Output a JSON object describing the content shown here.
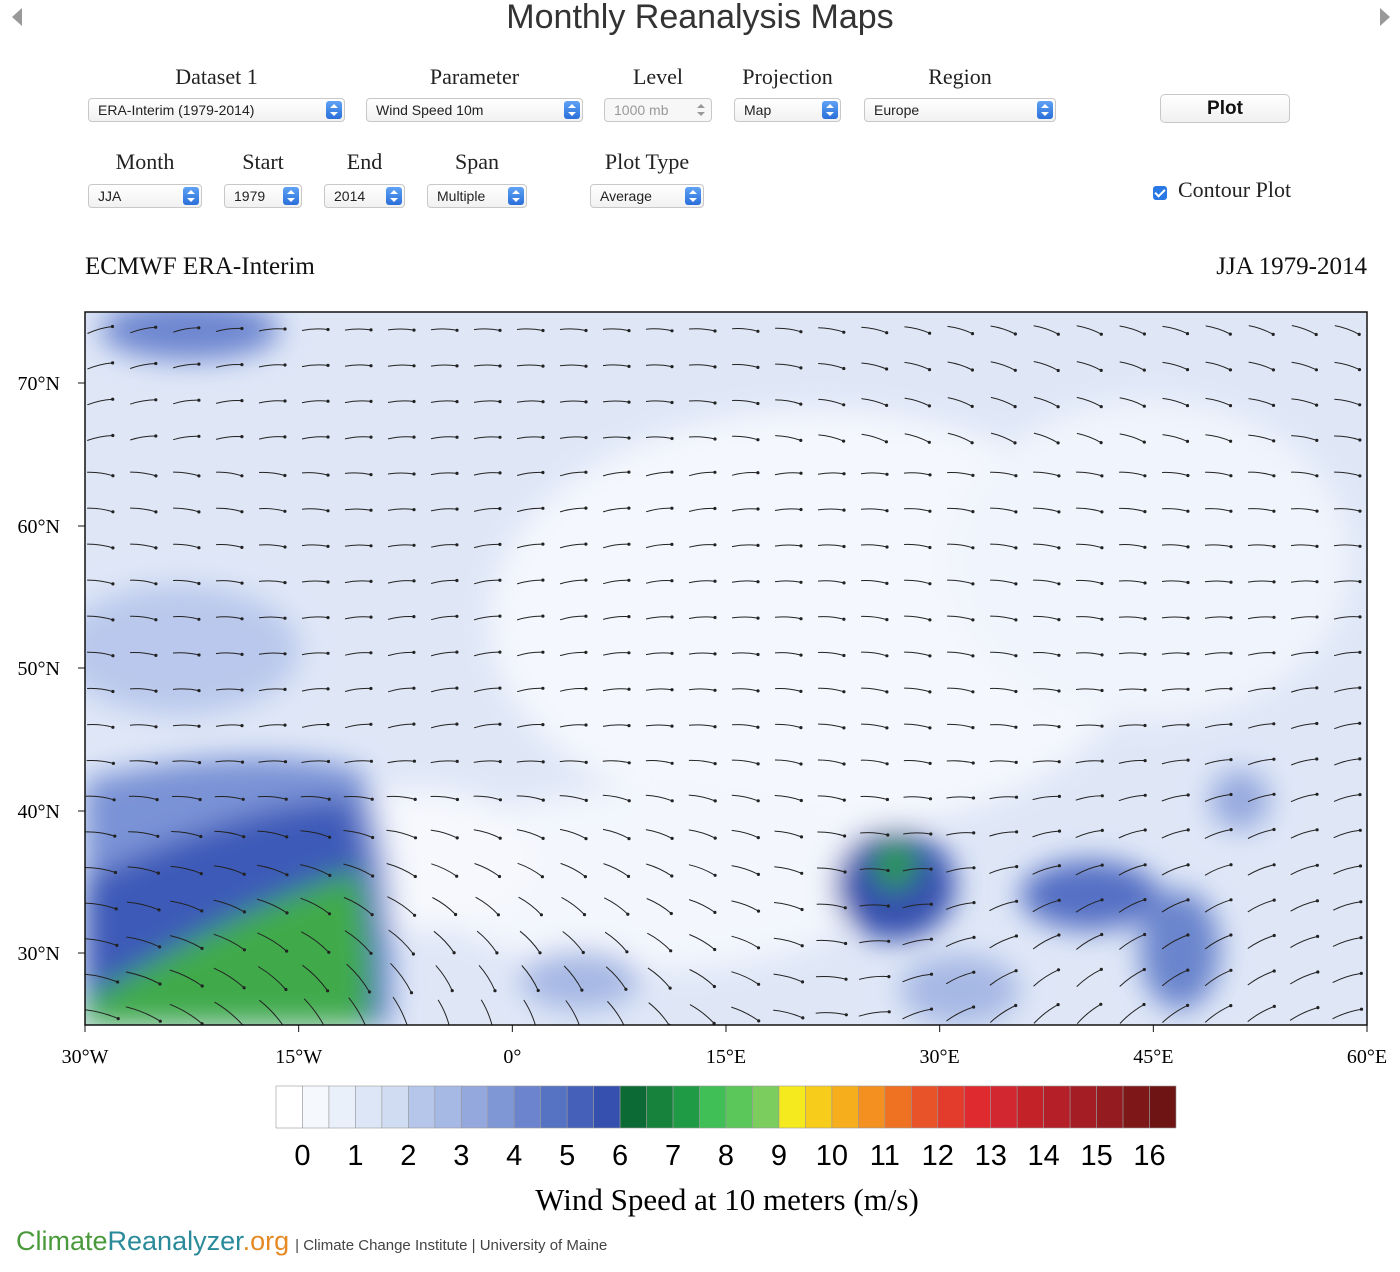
{
  "header": {
    "title": "Monthly Reanalysis Maps"
  },
  "form": {
    "row1": [
      {
        "label": "Dataset 1",
        "value": "ERA-Interim (1979-2014)"
      },
      {
        "label": "Parameter",
        "value": "Wind Speed 10m"
      },
      {
        "label": "Level",
        "value": "1000 mb",
        "disabled": true
      },
      {
        "label": "Projection",
        "value": "Map"
      },
      {
        "label": "Region",
        "value": "Europe"
      }
    ],
    "row2": [
      {
        "label": "Month",
        "value": "JJA"
      },
      {
        "label": "Start",
        "value": "1979"
      },
      {
        "label": "End",
        "value": "2014"
      },
      {
        "label": "Span",
        "value": "Multiple"
      },
      {
        "label": "Plot Type",
        "value": "Average"
      }
    ],
    "plot_button": "Plot",
    "contour_checkbox": {
      "label": "Contour Plot",
      "checked": true
    }
  },
  "map": {
    "title_left": "ECMWF ERA-Interim",
    "title_right": "JJA 1979-2014",
    "lat_labels": [
      "70°N",
      "60°N",
      "50°N",
      "40°N",
      "30°N"
    ],
    "lon_labels": [
      "30°W",
      "15°W",
      "0°",
      "15°E",
      "30°E",
      "45°E",
      "60°E"
    ]
  },
  "colorbar": {
    "ticks": [
      0,
      1,
      2,
      3,
      4,
      5,
      6,
      7,
      8,
      9,
      10,
      11,
      12,
      13,
      14,
      15,
      16
    ],
    "colors": [
      "#ffffff",
      "#f5f8fd",
      "#eaf0fa",
      "#dde6f6",
      "#d0dcf2",
      "#b5c6ea",
      "#a6b8e4",
      "#94a8de",
      "#8097d6",
      "#6b84cd",
      "#5672c3",
      "#4460b9",
      "#3550ae",
      "#0c6b34",
      "#17823c",
      "#1f9a45",
      "#3fbf55",
      "#5bc75a",
      "#7bcd5e",
      "#f5ea1d",
      "#f7cc1a",
      "#f6ae1c",
      "#f39020",
      "#ee7222",
      "#e9532a",
      "#e33b2c",
      "#df2a2f",
      "#d22630",
      "#c42229",
      "#b51f27",
      "#a51d24",
      "#941b1f",
      "#7e1818",
      "#6e1414"
    ],
    "label": "Wind Speed at 10 meters (m/s)"
  },
  "footer": {
    "brand": [
      "Climate",
      "Reanalyzer",
      ".org"
    ],
    "text": "| Climate Change Institute | University of Maine"
  }
}
